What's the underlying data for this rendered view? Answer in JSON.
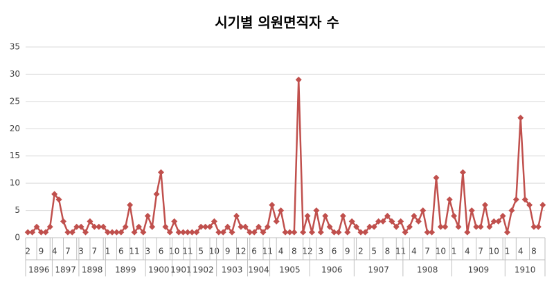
{
  "chart_data": {
    "type": "line",
    "title": "시기별 의원면직자 수",
    "categories": [
      "2",
      null,
      null,
      "9",
      null,
      null,
      "4",
      null,
      null,
      "7",
      null,
      null,
      "3",
      null,
      null,
      "7",
      null,
      null,
      "1",
      null,
      null,
      "6",
      null,
      null,
      "11",
      null,
      null,
      "3",
      null,
      null,
      "6",
      null,
      null,
      "10",
      null,
      null,
      "11",
      null,
      null,
      "5",
      null,
      null,
      "10",
      null,
      null,
      "9",
      null,
      null,
      "12",
      null,
      null,
      "6",
      null,
      null,
      "11",
      null,
      null,
      "4",
      null,
      null,
      "8",
      null,
      null,
      "12",
      null,
      null,
      "3",
      null,
      null,
      "6",
      null,
      null,
      "9",
      null,
      null,
      "2",
      null,
      null,
      "5",
      null,
      null,
      "8",
      null,
      null,
      "11",
      null,
      null,
      "4",
      null,
      null,
      "7",
      null,
      null,
      "10",
      null,
      null,
      "1",
      null,
      null,
      "4",
      null,
      null,
      "7",
      null,
      null,
      "10",
      null,
      null,
      "1",
      null,
      null,
      "4",
      null,
      null,
      "8",
      null,
      null
    ],
    "year_groups": [
      {
        "label": "1896",
        "count": 6
      },
      {
        "label": "1897",
        "count": 6
      },
      {
        "label": "1898",
        "count": 6
      },
      {
        "label": "1899",
        "count": 9
      },
      {
        "label": "1900",
        "count": 6
      },
      {
        "label": "1901",
        "count": 4
      },
      {
        "label": "1902",
        "count": 6
      },
      {
        "label": "1903",
        "count": 7
      },
      {
        "label": "1904",
        "count": 5
      },
      {
        "label": "1905",
        "count": 9
      },
      {
        "label": "1906",
        "count": 10
      },
      {
        "label": "1907",
        "count": 11
      },
      {
        "label": "1908",
        "count": 11
      },
      {
        "label": "1909",
        "count": 12
      },
      {
        "label": "1910",
        "count": 9
      }
    ],
    "series": [
      {
        "color": "#c0504d",
        "values": [
          1,
          1,
          2,
          1,
          1,
          2,
          8,
          7,
          3,
          1,
          1,
          2,
          2,
          1,
          3,
          2,
          2,
          2,
          1,
          1,
          1,
          1,
          2,
          6,
          1,
          2,
          1,
          4,
          2,
          8,
          12,
          2,
          1,
          3,
          1,
          1,
          1,
          1,
          1,
          2,
          2,
          2,
          3,
          1,
          1,
          2,
          1,
          4,
          2,
          2,
          1,
          1,
          2,
          1,
          2,
          6,
          3,
          5,
          1,
          1,
          1,
          29,
          1,
          4,
          1,
          5,
          1,
          4,
          2,
          1,
          1,
          4,
          1,
          3,
          2,
          1,
          1,
          2,
          2,
          3,
          3,
          4,
          3,
          2,
          3,
          1,
          2,
          4,
          3,
          5,
          1,
          1,
          11,
          2,
          2,
          7,
          4,
          2,
          12,
          1,
          5,
          2,
          2,
          6,
          2,
          3,
          3,
          4,
          1,
          5,
          7,
          22,
          7,
          6,
          2,
          2,
          6
        ]
      }
    ],
    "ylim": [
      0,
      35
    ],
    "yticks": [
      0,
      5,
      10,
      15,
      20,
      25,
      30,
      35
    ],
    "grid": true
  }
}
